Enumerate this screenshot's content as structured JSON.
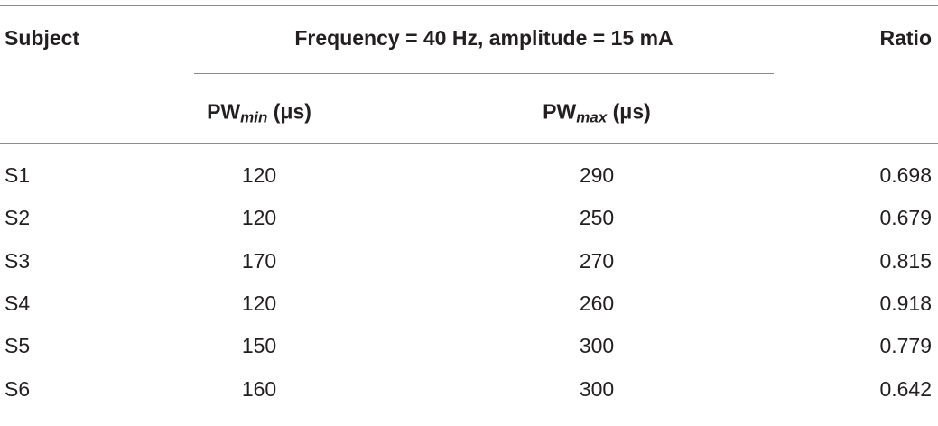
{
  "table": {
    "header": {
      "subject": "Subject",
      "group": "Frequency = 40 Hz, amplitude = 15 mA",
      "ratio": "Ratio",
      "pw_min": {
        "base": "PW",
        "sub": "min",
        "unit": "(μs)"
      },
      "pw_max": {
        "base": "PW",
        "sub": "max",
        "unit": "(μs)"
      }
    },
    "rows": [
      [
        "S1",
        "120",
        "290",
        "0.698"
      ],
      [
        "S2",
        "120",
        "250",
        "0.679"
      ],
      [
        "S3",
        "170",
        "270",
        "0.815"
      ],
      [
        "S4",
        "120",
        "260",
        "0.918"
      ],
      [
        "S5",
        "150",
        "300",
        "0.779"
      ],
      [
        "S6",
        "160",
        "300",
        "0.642"
      ]
    ]
  }
}
